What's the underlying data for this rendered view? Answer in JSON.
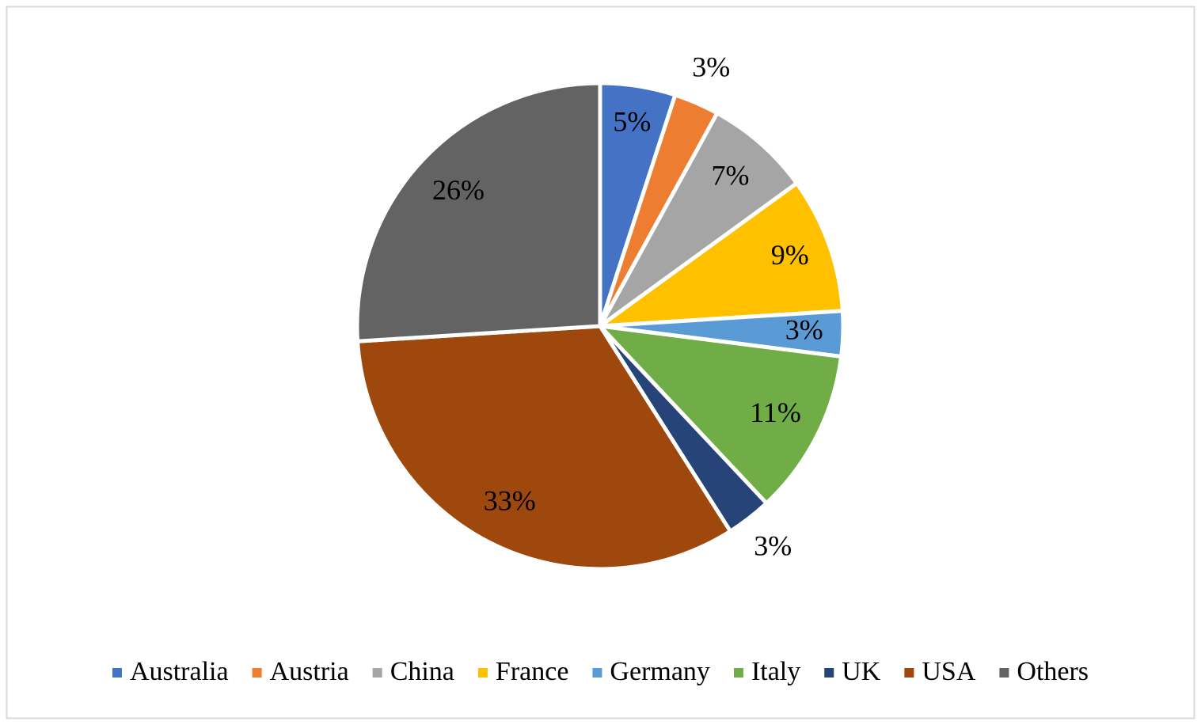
{
  "chart_data": {
    "type": "pie",
    "categories": [
      "Australia",
      "Austria",
      "China",
      "France",
      "Germany",
      "Italy",
      "UK",
      "USA",
      "Others"
    ],
    "values": [
      5,
      3,
      7,
      9,
      3,
      11,
      3,
      33,
      26
    ],
    "value_labels": [
      "5%",
      "3%",
      "7%",
      "9%",
      "3%",
      "11%",
      "3%",
      "33%",
      "26%"
    ],
    "colors": [
      "#4472c4",
      "#ed7d31",
      "#a5a5a5",
      "#ffc000",
      "#5b9bd5",
      "#70ad47",
      "#264478",
      "#9e480e",
      "#636363"
    ],
    "legend": "bottom"
  }
}
